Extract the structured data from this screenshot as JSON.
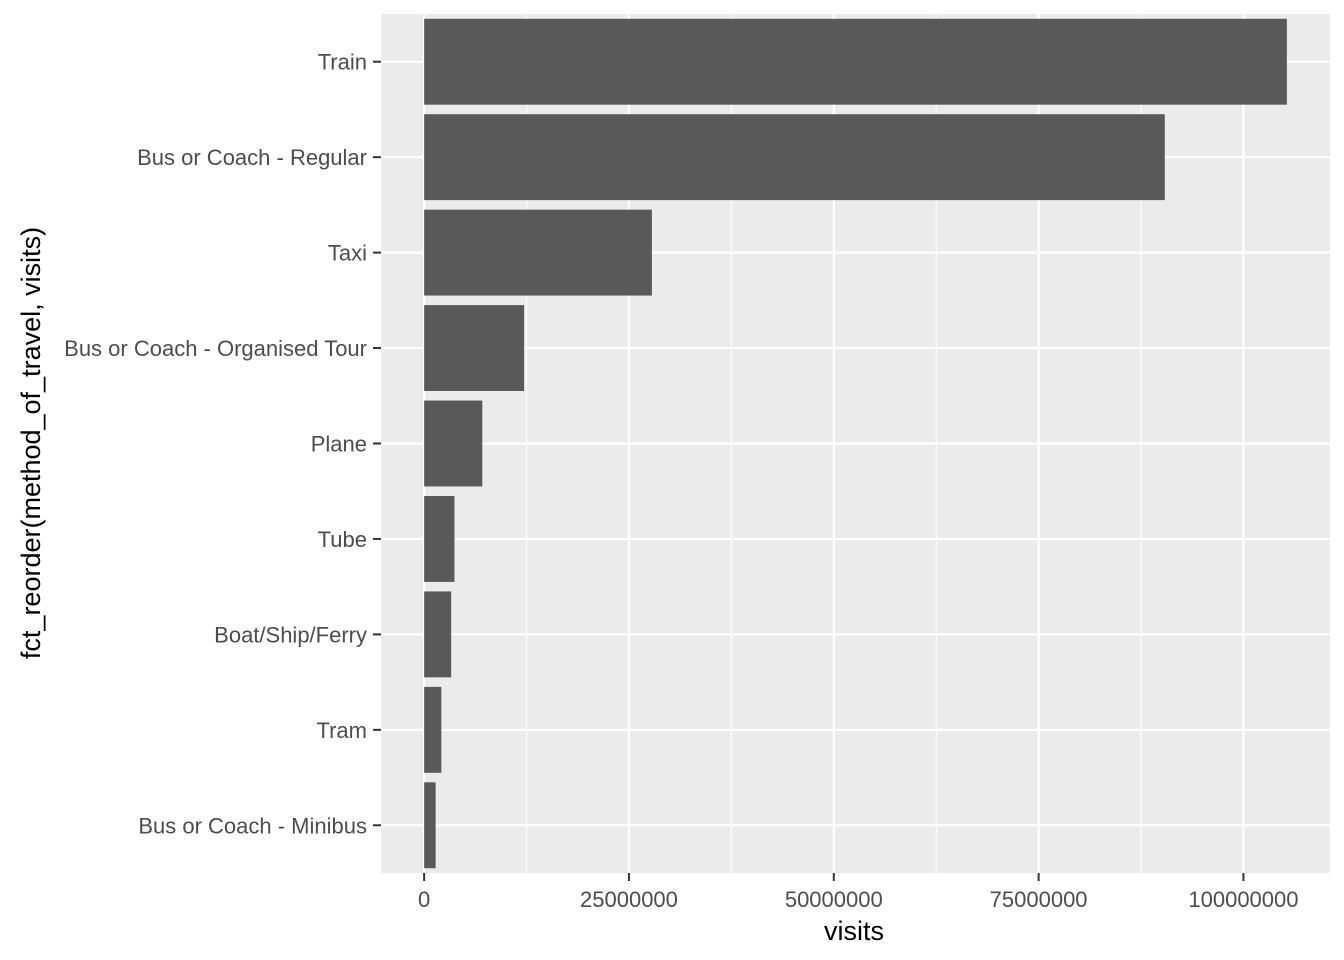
{
  "chart_data": {
    "type": "bar",
    "orientation": "horizontal",
    "xlabel": "visits",
    "ylabel": "fct_reorder(method_of_travel, visits)",
    "categories": [
      "Train",
      "Bus or Coach - Regular",
      "Taxi",
      "Bus or Coach - Organised Tour",
      "Plane",
      "Tube",
      "Boat/Ship/Ferry",
      "Tram",
      "Bus or Coach - Minibus"
    ],
    "values": [
      105300000,
      90400000,
      27800000,
      12200000,
      7100000,
      3700000,
      3300000,
      2100000,
      1400000
    ],
    "xlim": [
      -5265000,
      110565000
    ],
    "x_ticks": [
      0,
      25000000,
      50000000,
      75000000,
      100000000
    ],
    "x_tick_labels": [
      "0",
      "25000000",
      "50000000",
      "75000000",
      "100000000"
    ],
    "x_minor_ticks": [
      12500000,
      37500000,
      62500000,
      87500000
    ],
    "grid": true,
    "legend": "none",
    "colors": {
      "bar": "#595959",
      "panel": "#ebebeb",
      "grid": "#ffffff"
    }
  }
}
